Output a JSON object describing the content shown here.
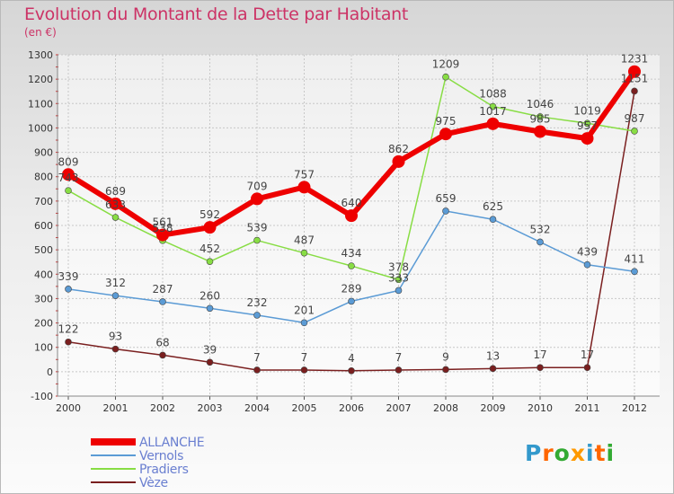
{
  "header": {
    "title": "Evolution du Montant de la Dette par Habitant",
    "unit": "(en €)"
  },
  "logo": {
    "text": "Proxiti",
    "colors": [
      "#3399cc",
      "#ff6600",
      "#33aa33",
      "#ff9900",
      "#3399cc",
      "#ff6600",
      "#33aa33"
    ]
  },
  "chart_data": {
    "type": "line",
    "x": [
      "2000",
      "2001",
      "2002",
      "2003",
      "2004",
      "2005",
      "2006",
      "2007",
      "2008",
      "2009",
      "2010",
      "2011",
      "2012"
    ],
    "ylim": [
      -100,
      1300
    ],
    "yticks": [
      -100,
      0,
      100,
      200,
      300,
      400,
      500,
      600,
      700,
      800,
      900,
      1000,
      1100,
      1200,
      1300
    ],
    "grid": true,
    "legend": "bottom-left",
    "series": [
      {
        "name": "ALLANCHE",
        "color": "#ee0000",
        "values": [
          809,
          689,
          561,
          592,
          709,
          757,
          640,
          862,
          975,
          1017,
          985,
          957,
          1231
        ]
      },
      {
        "name": "Vernols",
        "color": "#5b9bd5",
        "values": [
          339,
          312,
          287,
          260,
          232,
          201,
          289,
          333,
          659,
          625,
          532,
          439,
          411
        ]
      },
      {
        "name": "Pradiers",
        "color": "#88dd44",
        "values": [
          743,
          633,
          538,
          452,
          539,
          487,
          434,
          378,
          1209,
          1088,
          1046,
          1019,
          987
        ]
      },
      {
        "name": "Vèze",
        "color": "#7a1f1f",
        "values": [
          122,
          93,
          68,
          39,
          7,
          7,
          4,
          7,
          9,
          13,
          17,
          17,
          1151
        ]
      }
    ]
  }
}
